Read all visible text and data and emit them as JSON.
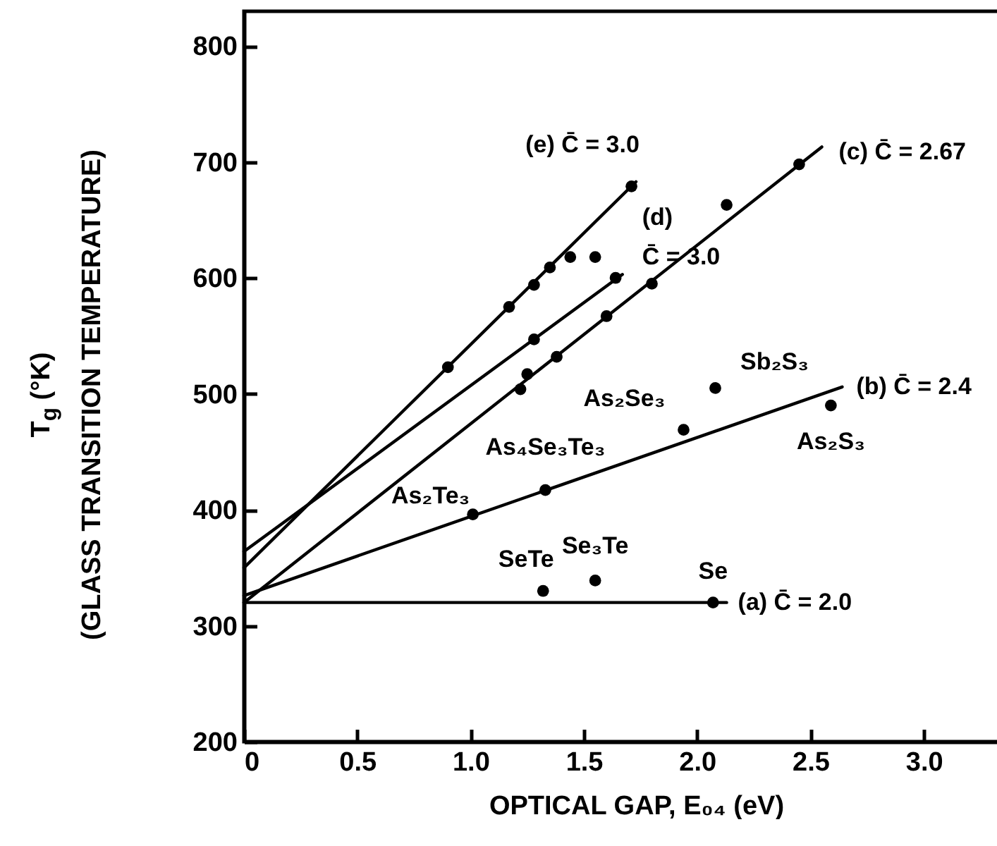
{
  "chart_data": {
    "type": "scatter",
    "xlabel": "OPTICAL GAP, E₀₄ (eV)",
    "ylabel": "T$_{g}$ (°K)\n(GLASS TRANSITION TEMPERATURE)",
    "xlim": [
      0,
      3.46
    ],
    "ylim": [
      200,
      830
    ],
    "xticks": [
      {
        "value": 0,
        "label": "0"
      },
      0.5,
      {
        "value": 1,
        "label": "1.0"
      },
      1.5,
      {
        "value": 2,
        "label": "2.0"
      },
      2.5,
      {
        "value": 3,
        "label": "3.0"
      }
    ],
    "yticks": [
      200,
      300,
      400,
      500,
      600,
      700,
      800
    ],
    "grid": false,
    "marker": "circle",
    "line_style": "solid",
    "series": [
      {
        "type": "line",
        "marker": "none",
        "name": "(a) C̄ = 2.0",
        "color": "#000000",
        "x": [
          0,
          2.13
        ],
        "values": [
          320,
          320
        ]
      },
      {
        "type": "line",
        "marker": "none",
        "name": "(b) C̄ = 2.4",
        "color": "#000000",
        "x": [
          0,
          2.64
        ],
        "values": [
          326,
          506
        ]
      },
      {
        "type": "line",
        "marker": "none",
        "name": "(c) C̄ = 2.67",
        "color": "#000000",
        "x": [
          0,
          2.55
        ],
        "values": [
          320,
          713
        ]
      },
      {
        "type": "line",
        "marker": "none",
        "name": "(d)\nC̄ = 3.0",
        "color": "#000000",
        "x": [
          0,
          1.67
        ],
        "values": [
          364,
          603
        ]
      },
      {
        "type": "line",
        "marker": "none",
        "name": "(e) C̄ = 3.0",
        "color": "#000000",
        "x": [
          0,
          1.73
        ],
        "values": [
          350,
          683
        ]
      },
      {
        "color": "#000000",
        "x": [
          1.32,
          1.55,
          2.07
        ],
        "values": [
          330,
          339,
          320
        ]
      },
      {
        "color": "#000000",
        "x": [
          1.01,
          1.33,
          1.94,
          2.08,
          2.59
        ],
        "values": [
          396,
          417,
          469,
          505,
          490
        ]
      },
      {
        "color": "#000000",
        "x": [
          1.22,
          1.25,
          1.38,
          1.6,
          1.8,
          2.13,
          2.45
        ],
        "values": [
          504,
          517,
          532,
          567,
          595,
          663,
          698
        ]
      },
      {
        "color": "#000000",
        "x": [
          1.28,
          1.55,
          1.64
        ],
        "values": [
          547,
          618,
          600
        ]
      },
      {
        "color": "#000000",
        "x": [
          0.9,
          1.17,
          1.28,
          1.35,
          1.44,
          1.71
        ],
        "values": [
          523,
          575,
          594,
          609,
          618,
          679
        ]
      }
    ],
    "annotations": [
      {
        "text": "As₂Te₃",
        "x": 1.01,
        "y": 396
      },
      {
        "text": "As₄Se₃Te₃",
        "x": 1.33,
        "y": 417
      },
      {
        "text": "As₂Se₃",
        "x": 1.94,
        "y": 469
      },
      {
        "text": "Sb₂S₃",
        "x": 2.08,
        "y": 505
      },
      {
        "text": "As₂S₃",
        "x": 2.59,
        "y": 490
      },
      {
        "text": "SeTe",
        "x": 1.32,
        "y": 330
      },
      {
        "text": "Se₃Te",
        "x": 1.55,
        "y": 339
      },
      {
        "text": "Se",
        "x": 2.07,
        "y": 320
      }
    ]
  }
}
